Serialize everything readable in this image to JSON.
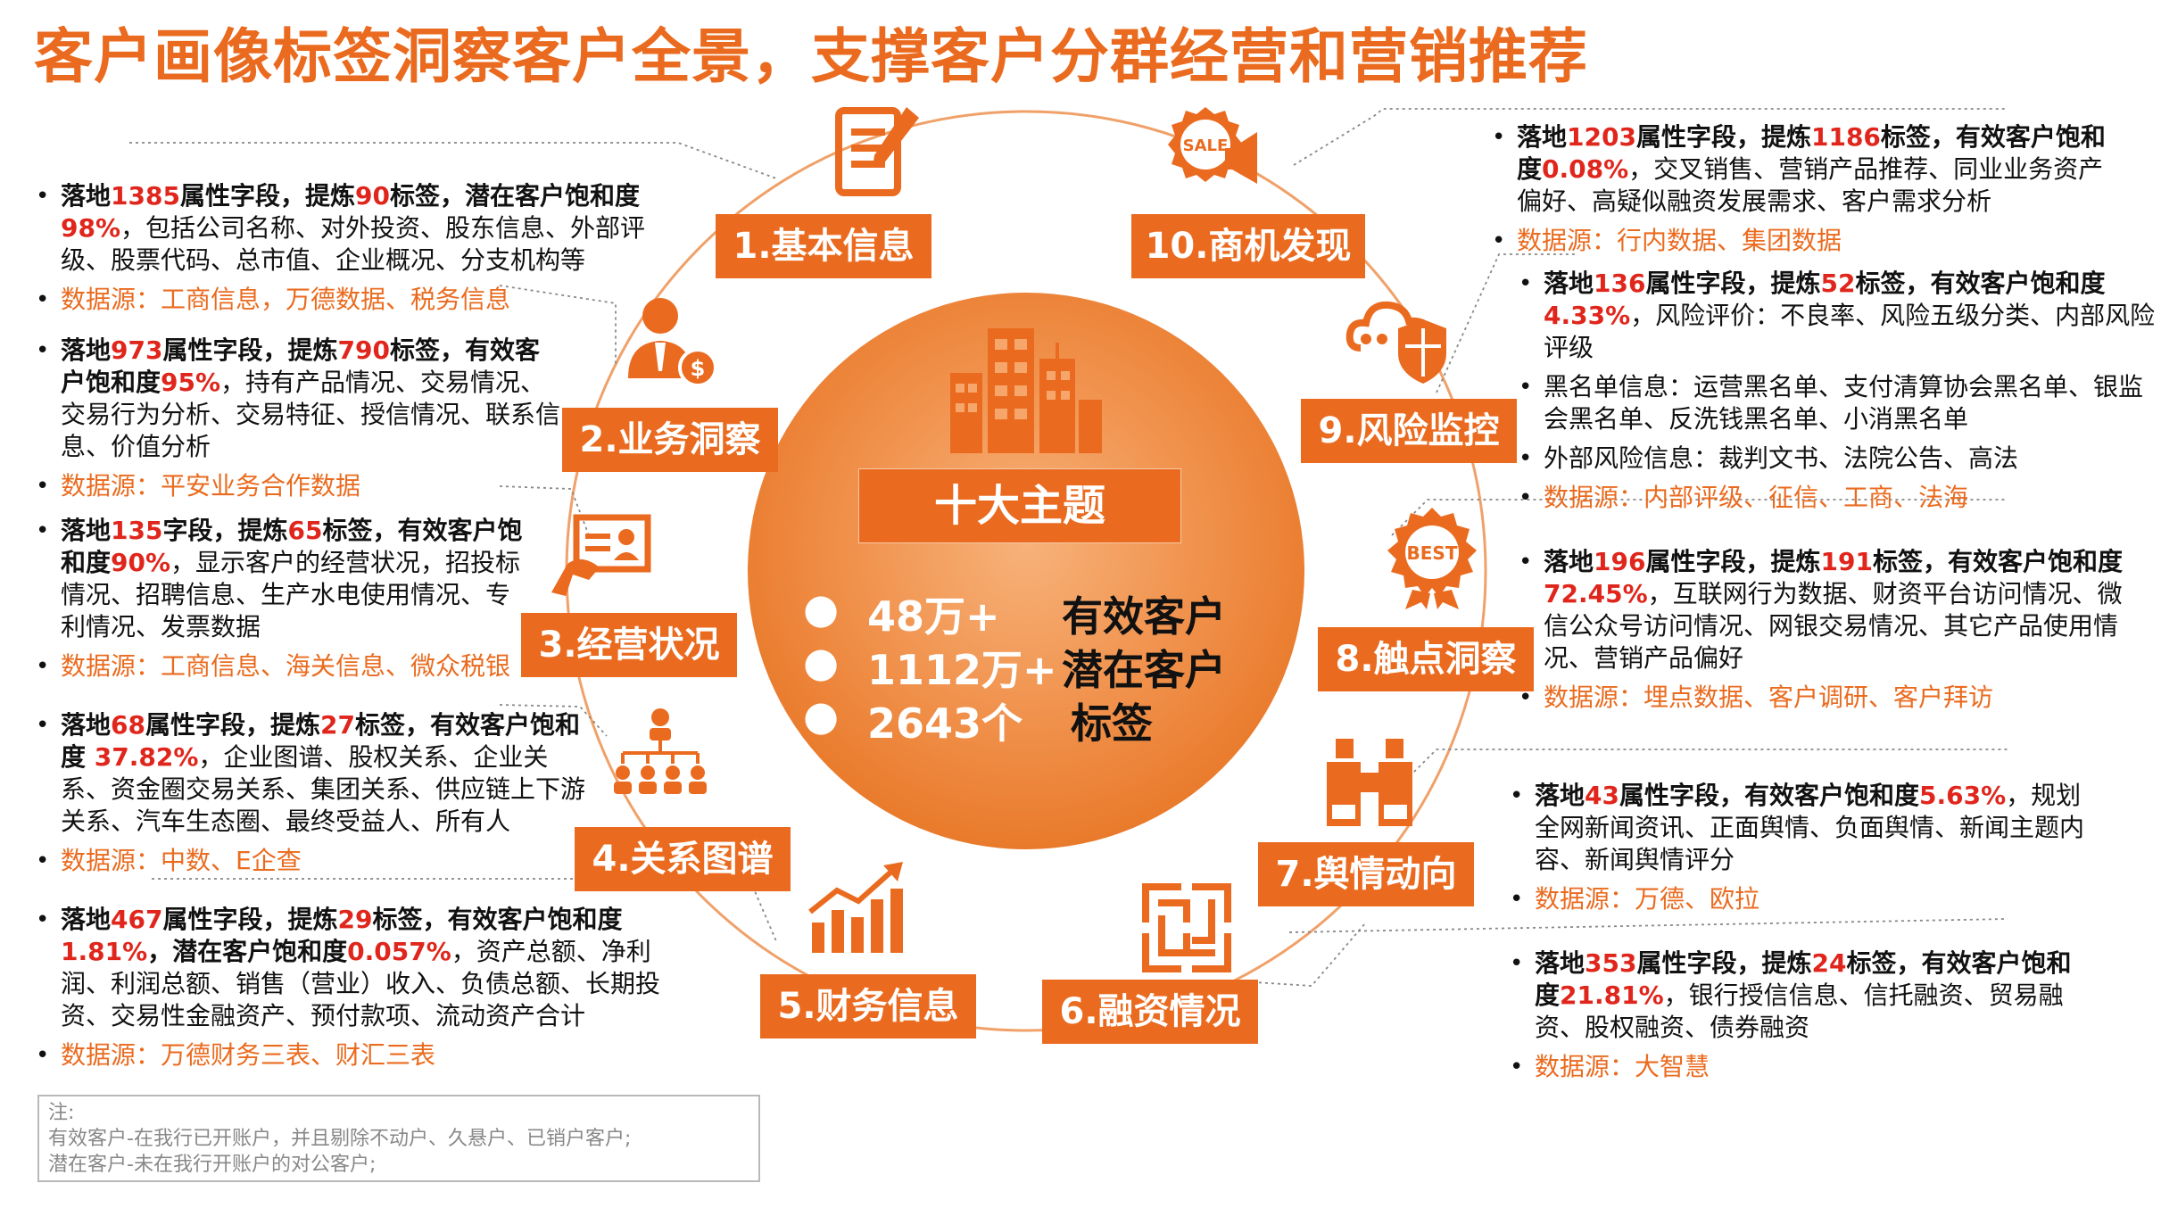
{
  "title": "客户画像标签洞察客户全景，支撑客户分群经营和营销推荐",
  "center": {
    "title": "十大主题",
    "stats": [
      {
        "value": "48万+",
        "label": "有效客户"
      },
      {
        "value": "1112万+",
        "label": "潜在客户"
      },
      {
        "value": "2643个",
        "label": "标签"
      }
    ]
  },
  "topics": [
    {
      "label": "1.基本信息",
      "icon": "document-pen-icon"
    },
    {
      "label": "2.业务洞察",
      "icon": "businessman-coin-icon"
    },
    {
      "label": "3.经营状况",
      "icon": "hand-id-card-icon"
    },
    {
      "label": "4.关系图谱",
      "icon": "org-chart-people-icon"
    },
    {
      "label": "5.财务信息",
      "icon": "bar-chart-arrow-icon"
    },
    {
      "label": "6.融资情况",
      "icon": "maze-icon"
    },
    {
      "label": "7.舆情动向",
      "icon": "binoculars-icon"
    },
    {
      "label": "8.触点洞察",
      "icon": "best-badge-icon"
    },
    {
      "label": "9.风险监控",
      "icon": "cloud-shield-icon"
    },
    {
      "label": "10.商机发现",
      "icon": "sale-megaphone-icon"
    }
  ],
  "details": {
    "t1": {
      "items": [
        [
          [
            "落地",
            "b"
          ],
          [
            "1385",
            "r"
          ],
          [
            "属性字段，",
            "b"
          ],
          [
            "提炼",
            "b"
          ],
          [
            "90",
            "r"
          ],
          [
            "标签，潜在客户饱和度",
            "b"
          ],
          [
            "98%",
            "r"
          ],
          [
            "，包括公司名称、对外投资、股东信息、外部评级、股票代码、总市值、企业概况、分支机构等",
            ""
          ]
        ]
      ],
      "source": "数据源：工商信息，万德数据、税务信息"
    },
    "t2": {
      "items": [
        [
          [
            "落地",
            "b"
          ],
          [
            "973",
            "r"
          ],
          [
            "属性字段，",
            "b"
          ],
          [
            "提炼",
            "b"
          ],
          [
            "790",
            "r"
          ],
          [
            "标签，有效客户饱和度",
            "b"
          ],
          [
            "95%",
            "r"
          ],
          [
            "，持有产品情况、交易情况、交易行为分析、交易特征、授信情况、联系信息、价值分析",
            ""
          ]
        ]
      ],
      "source": "数据源：平安业务合作数据"
    },
    "t3": {
      "items": [
        [
          [
            "落地",
            "b"
          ],
          [
            "135",
            "r"
          ],
          [
            "字段，",
            "b"
          ],
          [
            "提炼",
            "b"
          ],
          [
            "65",
            "r"
          ],
          [
            "标签，有效客户饱和度",
            "b"
          ],
          [
            "90%",
            "r"
          ],
          [
            "，显示客户的经营状况，招投标情况、招聘信息、生产水电使用情况、专利情况、发票数据",
            ""
          ]
        ]
      ],
      "source": "数据源：工商信息、海关信息、微众税银"
    },
    "t4": {
      "items": [
        [
          [
            "落地",
            "b"
          ],
          [
            "68",
            "r"
          ],
          [
            "属性字段，",
            "b"
          ],
          [
            "提炼",
            "b"
          ],
          [
            "27",
            "r"
          ],
          [
            "标签，有效客户饱和度",
            "b"
          ],
          [
            " 37.82%",
            "r"
          ],
          [
            "，企业图谱、股权关系、企业关系、资金圈交易关系、集团关系、供应链上下游关系、汽车生态圈、最终受益人、所有人",
            ""
          ]
        ]
      ],
      "source": "数据源：中数、E企查"
    },
    "t5": {
      "items": [
        [
          [
            "落地",
            "b"
          ],
          [
            "467",
            "r"
          ],
          [
            "属性字段，",
            "b"
          ],
          [
            "提炼",
            "b"
          ],
          [
            "29",
            "r"
          ],
          [
            "标签，有效客户饱和度",
            "b"
          ],
          [
            "1.81%",
            "r"
          ],
          [
            "，潜在客户饱和度",
            "b"
          ],
          [
            "0.057%",
            "r"
          ],
          [
            "，资产总额、净利润、利润总额、销售（营业）收入、负债总额、长期投资、交易性金融资产、预付款项、流动资产合计",
            ""
          ]
        ]
      ],
      "source": "数据源：万德财务三表、财汇三表"
    },
    "t6": {
      "items": [
        [
          [
            "落地",
            "b"
          ],
          [
            "353",
            "r"
          ],
          [
            "属性字段，",
            "b"
          ],
          [
            "提炼",
            "b"
          ],
          [
            "24",
            "r"
          ],
          [
            "标签，有效客户饱和度",
            "b"
          ],
          [
            "21.81%",
            "r"
          ],
          [
            "，银行授信信息、信托融资、贸易融资、股权融资、债券融资",
            ""
          ]
        ]
      ],
      "source": "数据源：大智慧"
    },
    "t7": {
      "items": [
        [
          [
            "落地",
            "b"
          ],
          [
            "43",
            "r"
          ],
          [
            "属性字段，",
            "b"
          ],
          [
            "有效客户饱和度",
            "b"
          ],
          [
            "5.63%",
            "r"
          ],
          [
            "，规划全网新闻资讯、正面舆情、负面舆情、新闻主题内容、新闻舆情评分",
            ""
          ]
        ]
      ],
      "source": "数据源：万德、欧拉"
    },
    "t8": {
      "items": [
        [
          [
            "落地",
            "b"
          ],
          [
            "196",
            "r"
          ],
          [
            "属性字段，",
            "b"
          ],
          [
            "提炼",
            "b"
          ],
          [
            "191",
            "r"
          ],
          [
            "标签，有效客户饱和度",
            "b"
          ],
          [
            "72.45%",
            "r"
          ],
          [
            "，互联网行为数据、财资平台访问情况、微信公众号访问情况、网银交易情况、其它产品使用情况、营销产品偏好",
            ""
          ]
        ]
      ],
      "source": "数据源：埋点数据、客户调研、客户拜访"
    },
    "t9": {
      "items": [
        [
          [
            "落地",
            "b"
          ],
          [
            "136",
            "r"
          ],
          [
            "属性字段，",
            "b"
          ],
          [
            "提炼",
            "b"
          ],
          [
            "52",
            "r"
          ],
          [
            "标签，有效客户饱和度",
            "b"
          ],
          [
            "4.33%",
            "r"
          ],
          [
            "，风险评价：不良率、风险五级分类、内部风险评级",
            ""
          ]
        ],
        [
          [
            "黑名单信息：运营黑名单、支付清算协会黑名单、银监会黑名单、反洗钱黑名单、小消黑名单",
            ""
          ]
        ],
        [
          [
            "外部风险信息：裁判文书、法院公告、高法",
            ""
          ]
        ]
      ],
      "source": "数据源：内部评级、征信、工商、法海"
    },
    "t10": {
      "items": [
        [
          [
            "落地",
            "b"
          ],
          [
            "1203",
            "r"
          ],
          [
            "属性字段，",
            "b"
          ],
          [
            "提炼",
            "b"
          ],
          [
            "1186",
            "r"
          ],
          [
            "标签，有效客户饱和度",
            "b"
          ],
          [
            "0.08%",
            "r"
          ],
          [
            "，交叉销售、营销产品推荐、同业业务资产偏好、高疑似融资发展需求、客户需求分析",
            ""
          ]
        ]
      ],
      "source": "数据源：行内数据、集团数据"
    }
  },
  "note": {
    "heading": "注:",
    "lines": [
      "有效客户-在我行已开账户，并且剔除不动户、久悬户、已销户客户;",
      "潜在客户-未在我行开账户的对公客户;"
    ]
  },
  "colors": {
    "accent": "#ea6b1f",
    "highlight": "#e0261c",
    "source": "#ea6b1f"
  }
}
